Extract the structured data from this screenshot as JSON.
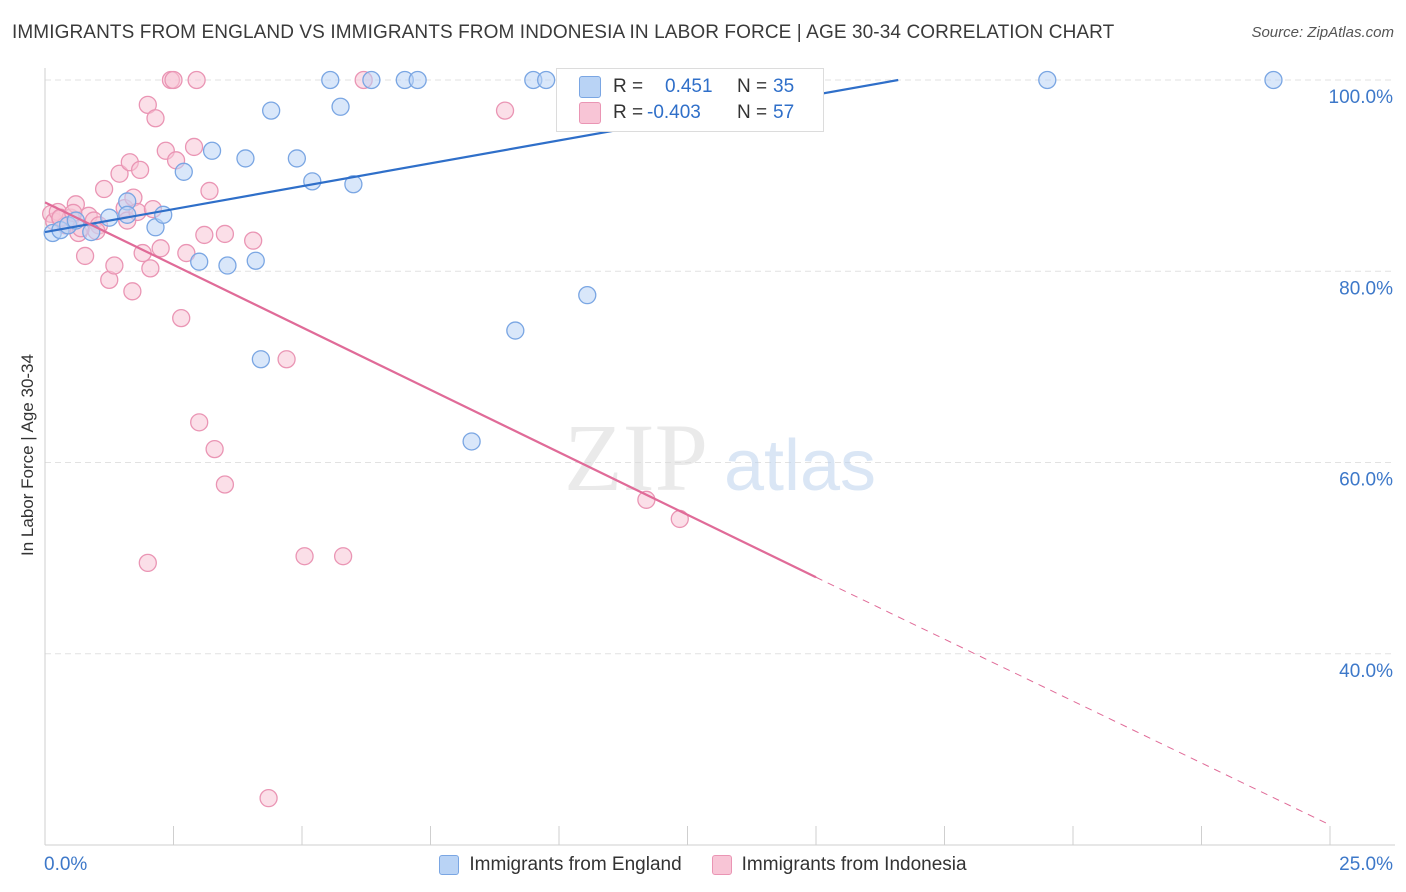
{
  "header": {
    "title": "IMMIGRANTS FROM ENGLAND VS IMMIGRANTS FROM INDONESIA IN LABOR FORCE | AGE 30-34 CORRELATION CHART",
    "source": "Source: ZipAtlas.com"
  },
  "watermark": {
    "zip": "ZIP",
    "atlas": "atlas"
  },
  "stats": {
    "r_label": "R =",
    "n_label": "N =",
    "england": {
      "r": "0.451",
      "n": "35"
    },
    "indonesia": {
      "r": "-0.403",
      "n": "57"
    }
  },
  "legend": {
    "england": "Immigrants from England",
    "indonesia": "Immigrants from Indonesia"
  },
  "colors": {
    "england_fill": "#b9d3f5",
    "england_stroke": "#7aa6e3",
    "england_line": "#2f6fc9",
    "indonesia_fill": "#f8c5d6",
    "indonesia_stroke": "#ea95b4",
    "indonesia_line": "#e06b98",
    "tick_label": "#3d78c9"
  },
  "chart_data": {
    "type": "scatter",
    "title": "IMMIGRANTS FROM ENGLAND VS IMMIGRANTS FROM INDONESIA IN LABOR FORCE | AGE 30-34 CORRELATION CHART",
    "xlabel": "",
    "ylabel": "In Labor Force | Age 30-34",
    "xlim": [
      0,
      25
    ],
    "ylim": [
      20,
      101
    ],
    "x_tick_labels": [
      {
        "value": 0,
        "label": "0.0%"
      },
      {
        "value": 25,
        "label": "25.0%"
      }
    ],
    "y_tick_labels": [
      {
        "value": 100,
        "label": "100.0%"
      },
      {
        "value": 80,
        "label": "80.0%"
      },
      {
        "value": 60,
        "label": "60.0%"
      },
      {
        "value": 40,
        "label": "40.0%"
      }
    ],
    "grid": true,
    "series": [
      {
        "name": "Immigrants from England",
        "points": [
          [
            0.15,
            84
          ],
          [
            0.3,
            84.3
          ],
          [
            0.45,
            84.8
          ],
          [
            0.6,
            85.3
          ],
          [
            0.9,
            84.1
          ],
          [
            1.25,
            85.6
          ],
          [
            1.6,
            87.3
          ],
          [
            1.6,
            85.9
          ],
          [
            2.15,
            84.6
          ],
          [
            2.3,
            85.9
          ],
          [
            2.7,
            90.4
          ],
          [
            3.0,
            81.0
          ],
          [
            3.25,
            92.6
          ],
          [
            3.55,
            80.6
          ],
          [
            3.9,
            91.8
          ],
          [
            4.1,
            81.1
          ],
          [
            4.2,
            70.8
          ],
          [
            4.4,
            96.8
          ],
          [
            4.9,
            91.8
          ],
          [
            5.2,
            89.4
          ],
          [
            5.55,
            100
          ],
          [
            5.75,
            97.2
          ],
          [
            6.0,
            89.1
          ],
          [
            6.35,
            100
          ],
          [
            7.0,
            100
          ],
          [
            7.25,
            100
          ],
          [
            8.3,
            62.2
          ],
          [
            9.15,
            73.8
          ],
          [
            9.5,
            100
          ],
          [
            9.75,
            100
          ],
          [
            10.55,
            77.5
          ],
          [
            11.0,
            100
          ],
          [
            12.2,
            100
          ],
          [
            19.5,
            100
          ],
          [
            23.9,
            100
          ]
        ]
      },
      {
        "name": "Immigrants from Indonesia",
        "points": [
          [
            0.12,
            86
          ],
          [
            0.18,
            85.2
          ],
          [
            0.25,
            86.2
          ],
          [
            0.3,
            85.5
          ],
          [
            0.4,
            84.8
          ],
          [
            0.5,
            85.6
          ],
          [
            0.6,
            87
          ],
          [
            0.65,
            84
          ],
          [
            0.7,
            84.5
          ],
          [
            0.78,
            81.6
          ],
          [
            0.85,
            85.8
          ],
          [
            0.95,
            85.3
          ],
          [
            1.05,
            84.8
          ],
          [
            1.15,
            88.6
          ],
          [
            1.25,
            79.1
          ],
          [
            1.35,
            80.6
          ],
          [
            1.45,
            90.2
          ],
          [
            1.55,
            86.6
          ],
          [
            1.6,
            85.3
          ],
          [
            1.65,
            91.4
          ],
          [
            1.7,
            77.9
          ],
          [
            1.72,
            87.7
          ],
          [
            1.8,
            86.2
          ],
          [
            1.85,
            90.6
          ],
          [
            1.9,
            81.9
          ],
          [
            2.0,
            97.4
          ],
          [
            2.05,
            80.3
          ],
          [
            2.1,
            86.5
          ],
          [
            2.15,
            96
          ],
          [
            2.25,
            82.4
          ],
          [
            2.35,
            92.6
          ],
          [
            2.45,
            100
          ],
          [
            2.5,
            100
          ],
          [
            2.55,
            91.6
          ],
          [
            2.65,
            75.1
          ],
          [
            2.75,
            81.9
          ],
          [
            2.9,
            93
          ],
          [
            2.95,
            100
          ],
          [
            3.1,
            83.8
          ],
          [
            3.2,
            88.4
          ],
          [
            3.5,
            83.9
          ],
          [
            4.05,
            83.2
          ],
          [
            4.35,
            24.9
          ],
          [
            4.7,
            70.8
          ],
          [
            5.05,
            50.2
          ],
          [
            5.8,
            50.2
          ],
          [
            6.2,
            100
          ],
          [
            8.95,
            96.8
          ],
          [
            11.7,
            56.1
          ],
          [
            12.35,
            54.1
          ],
          [
            2.0,
            49.5
          ],
          [
            3.0,
            64.2
          ],
          [
            3.3,
            61.4
          ],
          [
            3.5,
            57.7
          ],
          [
            0.3,
            85.6
          ],
          [
            1.0,
            84.2
          ],
          [
            0.55,
            86.1
          ]
        ]
      }
    ],
    "trend_lines": [
      {
        "name": "Immigrants from England",
        "x0": 0,
        "y0": 84.1,
        "x1": 16.6,
        "y1": 100,
        "style": "solid"
      },
      {
        "name": "Immigrants from Indonesia",
        "x0": 0,
        "y0": 87.2,
        "x1": 15.0,
        "y1": 48.0,
        "style": "solid"
      },
      {
        "name": "Immigrants from Indonesia",
        "x0": 15.0,
        "y0": 48.0,
        "x1": 25,
        "y1": 22.1,
        "style": "dashed"
      }
    ]
  }
}
